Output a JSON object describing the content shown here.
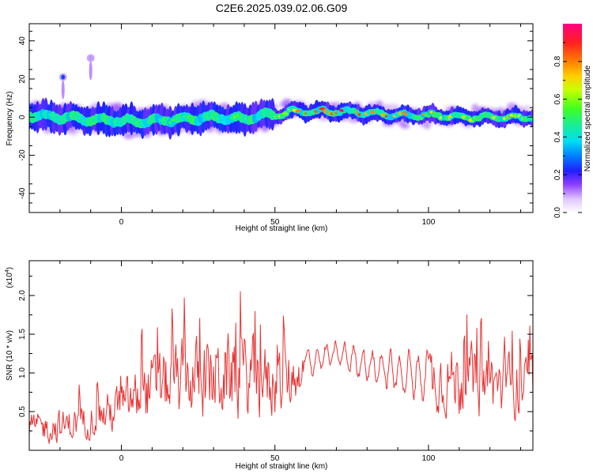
{
  "title": "C2E6.2025.039.02.06.G09",
  "chart_data": [
    {
      "type": "heatmap",
      "xlabel": "Height of straight line (km)",
      "ylabel": "Frequency (Hz)",
      "xlim": [
        -30,
        134
      ],
      "ylim": [
        -50,
        49
      ],
      "x_ticks": [
        0,
        50,
        100
      ],
      "y_ticks": [
        -40,
        -20,
        0,
        20,
        40
      ],
      "grid": false,
      "colorbar": {
        "label": "Normalized spectral amplitude",
        "range": [
          0.0,
          1.0
        ],
        "ticks": [
          0.0,
          0.2,
          0.4,
          0.6,
          0.8
        ],
        "tick_labels": [
          "0.0",
          "0.2",
          "0.4",
          "0.6",
          "0.8"
        ]
      },
      "ridge_center": [
        [
          -30,
          1
        ],
        [
          -20,
          0
        ],
        [
          -10,
          -1
        ],
        [
          0,
          -2
        ],
        [
          10,
          -2
        ],
        [
          20,
          -1
        ],
        [
          30,
          0
        ],
        [
          40,
          -1
        ],
        [
          45,
          1
        ],
        [
          50,
          1
        ],
        [
          55,
          3
        ],
        [
          60,
          3
        ],
        [
          70,
          3
        ],
        [
          80,
          2
        ],
        [
          90,
          1
        ],
        [
          100,
          1
        ],
        [
          110,
          0
        ],
        [
          120,
          0
        ],
        [
          134,
          0
        ]
      ],
      "ridge_peak_amplitude": [
        [
          -30,
          0.45
        ],
        [
          0,
          0.5
        ],
        [
          30,
          0.55
        ],
        [
          50,
          0.65
        ],
        [
          60,
          0.8
        ],
        [
          75,
          0.95
        ],
        [
          90,
          0.9
        ],
        [
          100,
          0.75
        ],
        [
          110,
          0.65
        ],
        [
          120,
          0.8
        ],
        [
          134,
          0.6
        ]
      ],
      "side_features": [
        {
          "x": -19,
          "y": 21,
          "amplitude": 0.25
        },
        {
          "x": -10,
          "y": 31,
          "amplitude": 0.1
        }
      ]
    },
    {
      "type": "line",
      "xlabel": "Height of straight line (km)",
      "ylabel": "SNR (10 * v/v)",
      "y_multiplier_label": "(x10",
      "y_multiplier_exponent": "4",
      "y_multiplier_close": ")",
      "xlim": [
        -30,
        134
      ],
      "ylim": [
        0,
        2.45
      ],
      "x_ticks": [
        0,
        50,
        100
      ],
      "y_ticks": [
        0.5,
        1.0,
        1.5,
        2.0
      ],
      "y_tick_labels": [
        "0.5",
        "1.0",
        "1.5",
        "2.0"
      ],
      "grid": false,
      "series": [
        {
          "color": "#e83232",
          "envelope_x": [
            -30,
            -20,
            -10,
            0,
            10,
            20,
            30,
            40,
            50,
            55,
            60,
            65,
            70,
            80,
            90,
            100,
            110,
            120,
            134
          ],
          "envelope_mean": [
            0.3,
            0.3,
            0.4,
            0.55,
            0.8,
            0.9,
            0.95,
            0.95,
            0.85,
            0.9,
            1.1,
            1.2,
            1.25,
            1.1,
            1.0,
            0.95,
            0.9,
            0.85,
            0.8
          ],
          "envelope_spread": [
            0.25,
            0.3,
            0.3,
            0.45,
            0.6,
            0.7,
            0.75,
            0.75,
            0.65,
            0.55,
            0.3,
            0.25,
            0.25,
            0.35,
            0.45,
            0.55,
            0.65,
            0.6,
            0.55
          ]
        }
      ]
    }
  ]
}
